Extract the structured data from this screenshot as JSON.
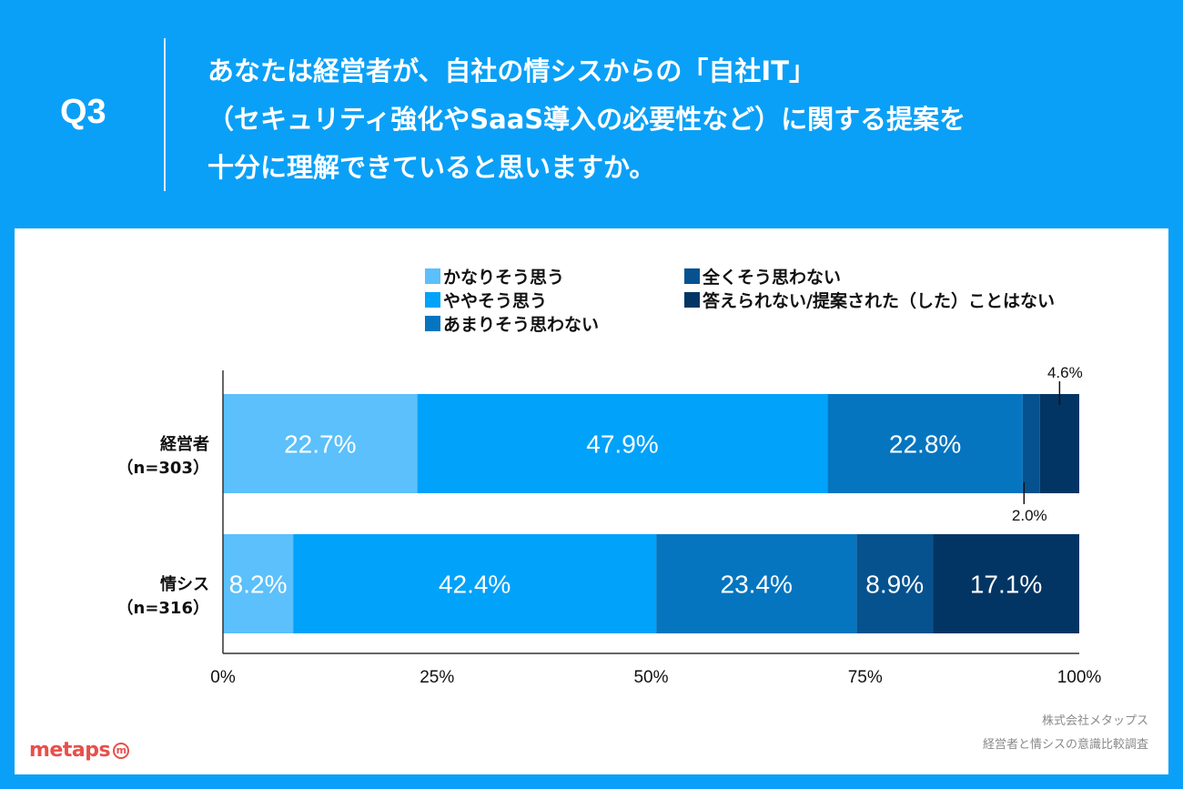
{
  "header": {
    "question_number": "Q3",
    "question_lines": [
      "あなたは経営者が、自社の情シスからの「自社IT」",
      "（セキュリティ強化やSaaS導入の必要性など）に関する提案を",
      "十分に理解できていると思いますか。"
    ]
  },
  "footer": {
    "company": "株式会社メタップス",
    "survey": "経営者と情シスの意識比較調査",
    "logo_text": "metaps",
    "logo_mark": "m"
  },
  "chart_data": {
    "type": "bar",
    "orientation": "horizontal",
    "stacked": true,
    "title": "",
    "xlabel": "",
    "ylabel": "",
    "xlim": [
      0,
      100
    ],
    "x_ticks": [
      "0%",
      "25%",
      "50%",
      "75%",
      "100%"
    ],
    "x_tick_values": [
      0,
      25,
      50,
      75,
      100
    ],
    "grid": false,
    "legend_position": "top-right",
    "categories": [
      {
        "name": "経営者",
        "n": "（n=303）"
      },
      {
        "name": "情シス",
        "n": "（n=316）"
      }
    ],
    "series": [
      {
        "name": "かなりそう思う",
        "color": "#5bc0fb",
        "values": [
          22.7,
          8.2
        ]
      },
      {
        "name": "ややそう思う",
        "color": "#00a2fa",
        "values": [
          47.9,
          42.4
        ]
      },
      {
        "name": "あまりそう思わない",
        "color": "#0575c0",
        "values": [
          22.8,
          23.4
        ]
      },
      {
        "name": "全くそう思わない",
        "color": "#05528f",
        "values": [
          2.0,
          8.9
        ]
      },
      {
        "name": "答えられない/提案された（した）ことはない",
        "color": "#033564",
        "values": [
          4.6,
          17.1
        ]
      }
    ],
    "data_labels": [
      [
        "22.7%",
        "47.9%",
        "22.8%",
        "2.0%",
        "4.6%"
      ],
      [
        "8.2%",
        "42.4%",
        "23.4%",
        "8.9%",
        "17.1%"
      ]
    ],
    "callout_labels": [
      {
        "category": 0,
        "series": 3,
        "placement": "below"
      },
      {
        "category": 0,
        "series": 4,
        "placement": "above"
      }
    ]
  }
}
